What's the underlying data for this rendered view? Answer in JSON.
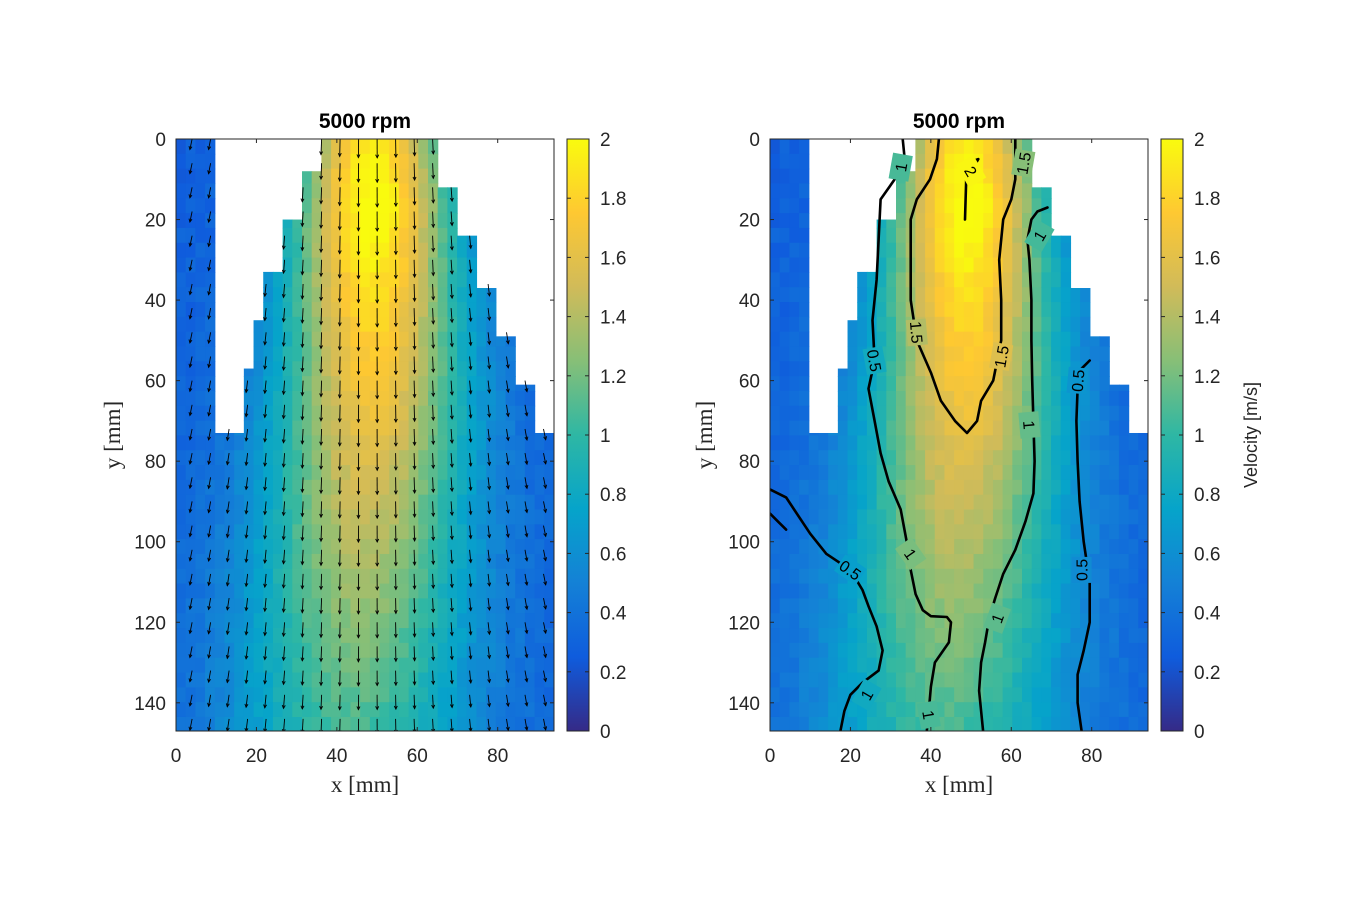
{
  "chart_data": [
    {
      "type": "heatmap",
      "subtype": "velocity field with quiver arrows",
      "title": "5000 rpm",
      "xlabel": "x [mm]",
      "ylabel": "y [mm]",
      "xlim": [
        0,
        94
      ],
      "ylim": [
        0,
        147
      ],
      "y_direction": "reversed",
      "xticks": [
        0,
        20,
        40,
        60,
        80
      ],
      "yticks": [
        0,
        20,
        40,
        60,
        80,
        100,
        120,
        140
      ],
      "colorbar": {
        "label": "",
        "range": [
          0,
          2
        ],
        "ticks": [
          0,
          0.2,
          0.4,
          0.6,
          0.8,
          1,
          1.2,
          1.4,
          1.6,
          1.8,
          2
        ]
      },
      "colormap": "parula",
      "grid": false,
      "boundary_top_y": [
        0,
        0,
        0,
        0,
        73,
        73,
        73,
        57,
        45,
        33,
        33,
        20,
        20,
        8,
        8,
        0,
        0,
        0,
        0,
        0,
        0,
        0,
        0,
        0,
        0,
        0,
        0,
        12,
        12,
        24,
        24,
        37,
        37,
        49,
        49,
        61,
        61,
        73,
        73
      ],
      "velocity_peak": {
        "x": 50,
        "y": 20,
        "value": 2.0
      },
      "arrows": "downward, roughly uniform spacing, length proportional to local velocity"
    },
    {
      "type": "heatmap",
      "subtype": "velocity field with contour lines",
      "title": "5000 rpm",
      "xlabel": "x [mm]",
      "ylabel": "y [mm]",
      "xlim": [
        0,
        94
      ],
      "ylim": [
        0,
        147
      ],
      "y_direction": "reversed",
      "xticks": [
        0,
        20,
        40,
        60,
        80
      ],
      "yticks": [
        0,
        20,
        40,
        60,
        80,
        100,
        120,
        140
      ],
      "colorbar": {
        "label": "Velocity [m/s]",
        "range": [
          0,
          2
        ],
        "ticks": [
          0,
          0.2,
          0.4,
          0.6,
          0.8,
          1,
          1.2,
          1.4,
          1.6,
          1.8,
          2
        ]
      },
      "colormap": "parula",
      "grid": false,
      "contour_levels": [
        0.5,
        1,
        1.5,
        2
      ],
      "contour_labels": [
        "2",
        "1.5",
        "1",
        "1",
        "1.5",
        "1.5",
        "1",
        "0.5",
        "0.5",
        "1",
        "1",
        "0.5",
        "1",
        "1",
        "0.5"
      ]
    }
  ]
}
